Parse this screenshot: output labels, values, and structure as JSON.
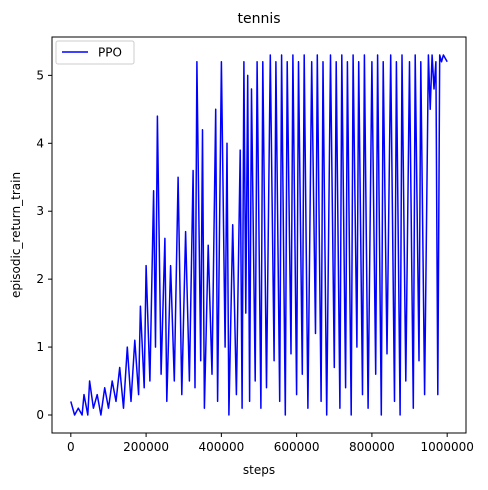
{
  "chart_data": {
    "type": "line",
    "title": "tennis",
    "xlabel": "steps",
    "ylabel": "episodic_return_train",
    "xlim": [
      -50000,
      1050000
    ],
    "ylim": [
      -0.265,
      5.565
    ],
    "xticks": [
      0,
      200000,
      400000,
      600000,
      800000,
      1000000
    ],
    "yticks": [
      0,
      1,
      2,
      3,
      4,
      5
    ],
    "grid": false,
    "legend": {
      "position": "top-left",
      "entries": [
        "PPO"
      ]
    },
    "series": [
      {
        "name": "PPO",
        "color": "#0000ff",
        "points": [
          [
            0,
            0.2
          ],
          [
            10000,
            0.0
          ],
          [
            20000,
            0.1
          ],
          [
            30000,
            0.0
          ],
          [
            35000,
            0.3
          ],
          [
            45000,
            0.0
          ],
          [
            50000,
            0.5
          ],
          [
            60000,
            0.1
          ],
          [
            70000,
            0.3
          ],
          [
            80000,
            0.0
          ],
          [
            90000,
            0.4
          ],
          [
            100000,
            0.1
          ],
          [
            110000,
            0.5
          ],
          [
            120000,
            0.2
          ],
          [
            130000,
            0.7
          ],
          [
            140000,
            0.1
          ],
          [
            150000,
            1.0
          ],
          [
            160000,
            0.2
          ],
          [
            170000,
            1.1
          ],
          [
            180000,
            0.3
          ],
          [
            185000,
            1.6
          ],
          [
            195000,
            0.4
          ],
          [
            200000,
            2.2
          ],
          [
            210000,
            0.5
          ],
          [
            220000,
            3.3
          ],
          [
            225000,
            1.0
          ],
          [
            230000,
            4.4
          ],
          [
            240000,
            0.6
          ],
          [
            250000,
            2.6
          ],
          [
            255000,
            0.2
          ],
          [
            265000,
            2.2
          ],
          [
            275000,
            0.5
          ],
          [
            285000,
            3.5
          ],
          [
            295000,
            0.3
          ],
          [
            305000,
            2.7
          ],
          [
            315000,
            0.5
          ],
          [
            325000,
            3.6
          ],
          [
            330000,
            0.4
          ],
          [
            335000,
            5.2
          ],
          [
            345000,
            0.8
          ],
          [
            350000,
            4.2
          ],
          [
            355000,
            0.1
          ],
          [
            365000,
            2.5
          ],
          [
            375000,
            0.6
          ],
          [
            385000,
            4.5
          ],
          [
            390000,
            0.2
          ],
          [
            400000,
            5.2
          ],
          [
            410000,
            1.0
          ],
          [
            415000,
            4.0
          ],
          [
            420000,
            0.0
          ],
          [
            430000,
            2.8
          ],
          [
            440000,
            0.3
          ],
          [
            450000,
            3.9
          ],
          [
            455000,
            0.1
          ],
          [
            460000,
            5.2
          ],
          [
            465000,
            1.5
          ],
          [
            470000,
            5.0
          ],
          [
            475000,
            0.2
          ],
          [
            480000,
            4.8
          ],
          [
            490000,
            0.5
          ],
          [
            495000,
            5.2
          ],
          [
            505000,
            0.1
          ],
          [
            510000,
            5.2
          ],
          [
            520000,
            0.4
          ],
          [
            530000,
            5.3
          ],
          [
            540000,
            0.8
          ],
          [
            545000,
            5.2
          ],
          [
            555000,
            0.2
          ],
          [
            560000,
            5.3
          ],
          [
            570000,
            0.0
          ],
          [
            575000,
            5.2
          ],
          [
            585000,
            0.9
          ],
          [
            590000,
            5.3
          ],
          [
            600000,
            0.3
          ],
          [
            605000,
            5.2
          ],
          [
            615000,
            0.6
          ],
          [
            620000,
            5.3
          ],
          [
            630000,
            0.1
          ],
          [
            640000,
            5.2
          ],
          [
            650000,
            1.2
          ],
          [
            655000,
            5.3
          ],
          [
            665000,
            0.2
          ],
          [
            670000,
            5.2
          ],
          [
            680000,
            0.0
          ],
          [
            690000,
            5.3
          ],
          [
            700000,
            0.7
          ],
          [
            705000,
            5.2
          ],
          [
            715000,
            0.1
          ],
          [
            720000,
            5.3
          ],
          [
            730000,
            0.4
          ],
          [
            735000,
            5.2
          ],
          [
            745000,
            0.0
          ],
          [
            750000,
            5.3
          ],
          [
            760000,
            1.0
          ],
          [
            765000,
            5.2
          ],
          [
            775000,
            0.3
          ],
          [
            780000,
            5.3
          ],
          [
            790000,
            0.1
          ],
          [
            800000,
            5.2
          ],
          [
            810000,
            0.6
          ],
          [
            815000,
            5.3
          ],
          [
            825000,
            0.0
          ],
          [
            830000,
            5.2
          ],
          [
            840000,
            0.9
          ],
          [
            850000,
            5.3
          ],
          [
            860000,
            0.2
          ],
          [
            865000,
            5.2
          ],
          [
            875000,
            0.0
          ],
          [
            880000,
            5.3
          ],
          [
            890000,
            0.5
          ],
          [
            900000,
            5.2
          ],
          [
            910000,
            0.1
          ],
          [
            915000,
            5.3
          ],
          [
            925000,
            0.8
          ],
          [
            930000,
            5.2
          ],
          [
            940000,
            0.3
          ],
          [
            950000,
            5.3
          ],
          [
            955000,
            4.5
          ],
          [
            960000,
            5.3
          ],
          [
            965000,
            4.8
          ],
          [
            970000,
            5.2
          ],
          [
            975000,
            0.3
          ],
          [
            980000,
            5.3
          ],
          [
            985000,
            5.2
          ],
          [
            990000,
            5.3
          ],
          [
            1000000,
            5.2
          ]
        ]
      }
    ]
  }
}
